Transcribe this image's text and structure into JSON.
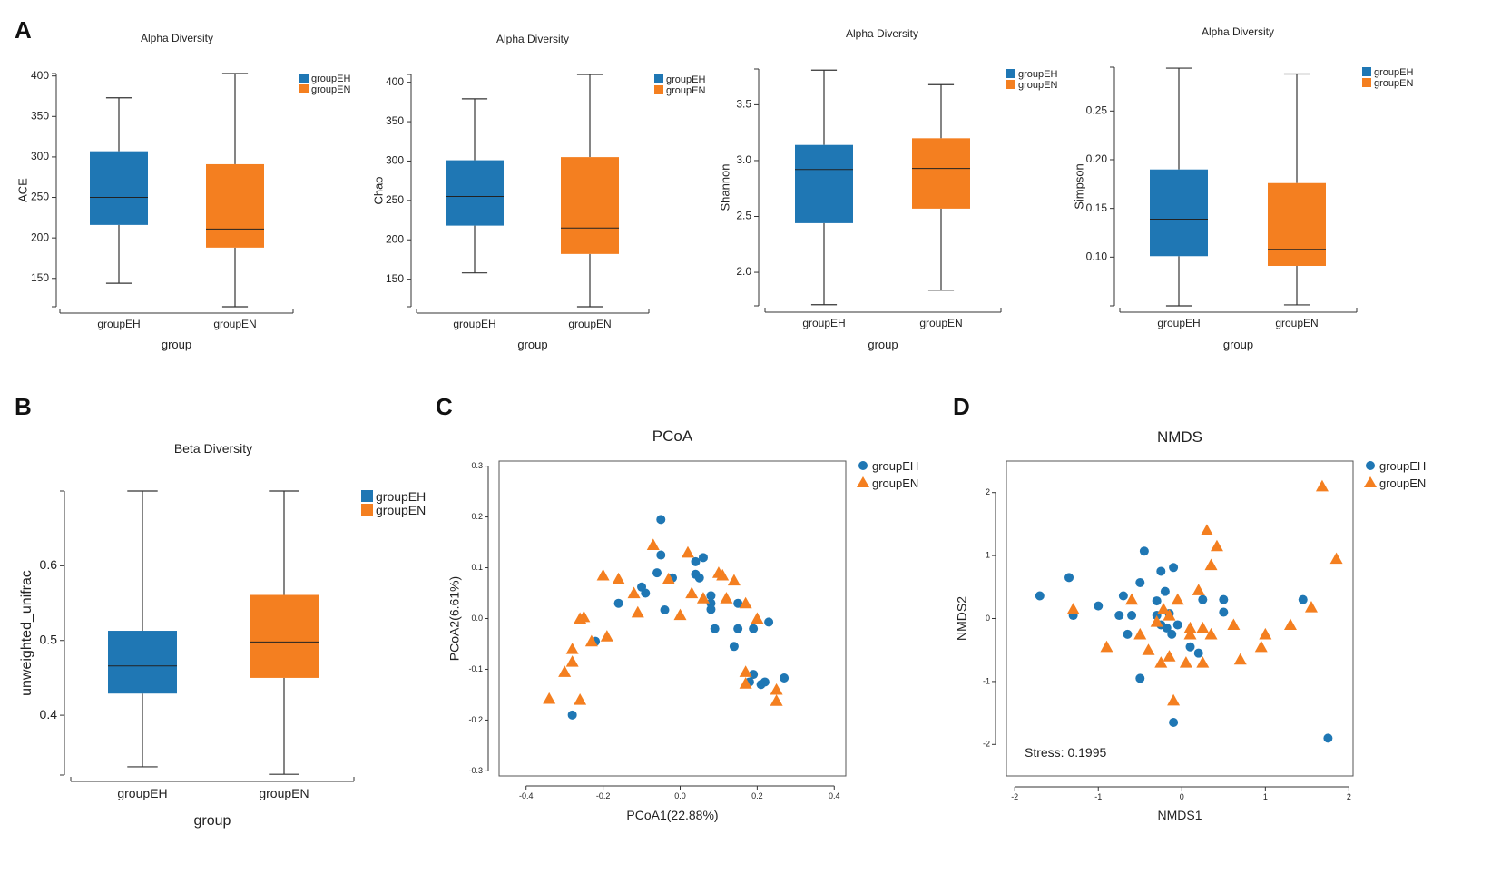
{
  "panel_labels": {
    "a": "A",
    "b": "B",
    "c": "C",
    "d": "D"
  },
  "colors": {
    "groupEH": "#1f77b4",
    "groupEN": "#f47f20",
    "axis": "#333333"
  },
  "chart_data": [
    {
      "id": "ace",
      "type": "box",
      "title": "Alpha Diversity",
      "xlabel": "group",
      "ylabel": "ACE",
      "categories": [
        "groupEH",
        "groupEN"
      ],
      "legend": [
        "groupEH",
        "groupEN"
      ],
      "ylim": [
        115,
        403
      ],
      "yticks": [
        150,
        200,
        250,
        300,
        350,
        400
      ],
      "boxes": [
        {
          "name": "groupEH",
          "min": 144,
          "q1": 216,
          "median": 250,
          "q3": 307,
          "max": 373
        },
        {
          "name": "groupEN",
          "min": 115,
          "q1": 188,
          "median": 211,
          "q3": 291,
          "max": 403
        }
      ]
    },
    {
      "id": "chao",
      "type": "box",
      "title": "Alpha Diversity",
      "xlabel": "group",
      "ylabel": "Chao",
      "categories": [
        "groupEH",
        "groupEN"
      ],
      "legend": [
        "groupEH",
        "groupEN"
      ],
      "ylim": [
        115,
        410
      ],
      "yticks": [
        150,
        200,
        250,
        300,
        350,
        400
      ],
      "boxes": [
        {
          "name": "groupEH",
          "min": 158,
          "q1": 218,
          "median": 255,
          "q3": 301,
          "max": 379
        },
        {
          "name": "groupEN",
          "min": 115,
          "q1": 182,
          "median": 215,
          "q3": 305,
          "max": 410
        }
      ]
    },
    {
      "id": "shannon",
      "type": "box",
      "title": "Alpha Diversity",
      "xlabel": "group",
      "ylabel": "Shannon",
      "categories": [
        "groupEH",
        "groupEN"
      ],
      "legend": [
        "groupEH",
        "groupEN"
      ],
      "ylim": [
        1.7,
        3.82
      ],
      "yticks": [
        2.0,
        2.5,
        3.0,
        3.5
      ],
      "tick_format": "1",
      "boxes": [
        {
          "name": "groupEH",
          "min": 1.71,
          "q1": 2.44,
          "median": 2.92,
          "q3": 3.14,
          "max": 3.81
        },
        {
          "name": "groupEN",
          "min": 1.84,
          "q1": 2.57,
          "median": 2.93,
          "q3": 3.2,
          "max": 3.68
        }
      ]
    },
    {
      "id": "simpson",
      "type": "box",
      "title": "Alpha Diversity",
      "xlabel": "group",
      "ylabel": "Simpson",
      "categories": [
        "groupEH",
        "groupEN"
      ],
      "legend": [
        "groupEH",
        "groupEN"
      ],
      "ylim": [
        0.05,
        0.295
      ],
      "yticks": [
        0.1,
        0.15,
        0.2,
        0.25
      ],
      "tick_format": "2",
      "boxes": [
        {
          "name": "groupEH",
          "min": 0.05,
          "q1": 0.101,
          "median": 0.139,
          "q3": 0.19,
          "max": 0.294
        },
        {
          "name": "groupEN",
          "min": 0.051,
          "q1": 0.091,
          "median": 0.108,
          "q3": 0.176,
          "max": 0.288
        }
      ]
    },
    {
      "id": "beta",
      "type": "box",
      "title": "Beta Diversity",
      "xlabel": "group",
      "ylabel": "unweighted_unifrac",
      "categories": [
        "groupEH",
        "groupEN"
      ],
      "legend": [
        "groupEH",
        "groupEN"
      ],
      "ylim": [
        0.32,
        0.7
      ],
      "yticks": [
        0.4,
        0.5,
        0.6
      ],
      "tick_format": "1",
      "boxes": [
        {
          "name": "groupEH",
          "min": 0.331,
          "q1": 0.429,
          "median": 0.466,
          "q3": 0.513,
          "max": 0.7
        },
        {
          "name": "groupEN",
          "min": 0.321,
          "q1": 0.45,
          "median": 0.498,
          "q3": 0.561,
          "max": 0.7
        }
      ]
    },
    {
      "id": "pcoa",
      "type": "scatter",
      "title": "PCoA",
      "xlabel": "PCoA1(22.88%)",
      "ylabel": "PCoA2(6.61%)",
      "xlim": [
        -0.47,
        0.43
      ],
      "ylim": [
        -0.31,
        0.31
      ],
      "xticks": [
        -0.4,
        -0.2,
        0.0,
        0.2,
        0.4
      ],
      "yticks": [
        -0.3,
        -0.2,
        -0.1,
        0.0,
        0.1,
        0.2,
        0.3
      ],
      "tick_format": "1",
      "legend": [
        "groupEH",
        "groupEN"
      ],
      "series": [
        {
          "name": "groupEH",
          "marker": "circle",
          "points": [
            [
              -0.05,
              0.195
            ],
            [
              -0.05,
              0.125
            ],
            [
              0.04,
              0.112
            ],
            [
              0.06,
              0.12
            ],
            [
              -0.1,
              0.062
            ],
            [
              -0.09,
              0.05
            ],
            [
              -0.06,
              0.09
            ],
            [
              -0.02,
              0.08
            ],
            [
              0.04,
              0.087
            ],
            [
              0.05,
              0.08
            ],
            [
              0.08,
              0.045
            ],
            [
              0.08,
              0.03
            ],
            [
              0.08,
              0.018
            ],
            [
              -0.16,
              0.03
            ],
            [
              -0.04,
              0.017
            ],
            [
              0.09,
              -0.02
            ],
            [
              0.15,
              0.03
            ],
            [
              0.15,
              -0.02
            ],
            [
              0.19,
              -0.02
            ],
            [
              0.23,
              -0.007
            ],
            [
              0.14,
              -0.055
            ],
            [
              0.19,
              -0.11
            ],
            [
              0.18,
              -0.125
            ],
            [
              0.22,
              -0.125
            ],
            [
              0.27,
              -0.117
            ],
            [
              0.21,
              -0.13
            ],
            [
              -0.22,
              -0.045
            ],
            [
              -0.28,
              -0.19
            ]
          ]
        },
        {
          "name": "groupEN",
          "marker": "triangle",
          "points": [
            [
              -0.07,
              0.145
            ],
            [
              0.02,
              0.13
            ],
            [
              -0.2,
              0.085
            ],
            [
              -0.16,
              0.078
            ],
            [
              -0.03,
              0.078
            ],
            [
              -0.12,
              0.05
            ],
            [
              0.1,
              0.09
            ],
            [
              0.11,
              0.085
            ],
            [
              0.14,
              0.075
            ],
            [
              0.03,
              0.05
            ],
            [
              0.06,
              0.04
            ],
            [
              0.12,
              0.04
            ],
            [
              0.17,
              0.03
            ],
            [
              -0.11,
              0.012
            ],
            [
              0.0,
              0.007
            ],
            [
              0.2,
              0.0
            ],
            [
              -0.26,
              0.0
            ],
            [
              -0.25,
              0.003
            ],
            [
              -0.23,
              -0.045
            ],
            [
              -0.19,
              -0.035
            ],
            [
              -0.28,
              -0.06
            ],
            [
              -0.28,
              -0.085
            ],
            [
              -0.3,
              -0.105
            ],
            [
              0.17,
              -0.105
            ],
            [
              0.17,
              -0.128
            ],
            [
              0.25,
              -0.14
            ],
            [
              0.25,
              -0.162
            ],
            [
              -0.26,
              -0.16
            ],
            [
              -0.34,
              -0.158
            ]
          ]
        }
      ]
    },
    {
      "id": "nmds",
      "type": "scatter",
      "title": "NMDS",
      "xlabel": "NMDS1",
      "ylabel": "NMDS2",
      "xlim": [
        -2.1,
        2.05
      ],
      "ylim": [
        -2.5,
        2.5
      ],
      "xticks": [
        -2,
        -1,
        0,
        1,
        2
      ],
      "yticks": [
        -2,
        -1,
        0,
        1,
        2
      ],
      "tick_format": "0",
      "legend": [
        "groupEH",
        "groupEN"
      ],
      "annotation": "Stress: 0.1995",
      "series": [
        {
          "name": "groupEH",
          "marker": "circle",
          "points": [
            [
              -1.7,
              0.36
            ],
            [
              -1.35,
              0.65
            ],
            [
              -1.3,
              0.05
            ],
            [
              -1.0,
              0.2
            ],
            [
              -0.7,
              0.36
            ],
            [
              -0.5,
              0.57
            ],
            [
              -0.45,
              1.07
            ],
            [
              -0.3,
              0.28
            ],
            [
              -0.25,
              0.75
            ],
            [
              -0.2,
              0.43
            ],
            [
              -0.15,
              0.08
            ],
            [
              -0.1,
              0.81
            ],
            [
              -0.75,
              0.05
            ],
            [
              -0.6,
              0.05
            ],
            [
              -0.65,
              -0.25
            ],
            [
              -0.3,
              0.05
            ],
            [
              -0.25,
              -0.1
            ],
            [
              -0.18,
              -0.15
            ],
            [
              -0.12,
              -0.25
            ],
            [
              -0.05,
              -0.1
            ],
            [
              0.1,
              -0.45
            ],
            [
              0.2,
              -0.55
            ],
            [
              0.25,
              0.3
            ],
            [
              0.5,
              0.3
            ],
            [
              0.5,
              0.1
            ],
            [
              1.45,
              0.3
            ],
            [
              -0.5,
              -0.95
            ],
            [
              -0.1,
              -1.65
            ],
            [
              1.75,
              -1.9
            ]
          ]
        },
        {
          "name": "groupEN",
          "marker": "triangle",
          "points": [
            [
              -1.3,
              0.15
            ],
            [
              -0.6,
              0.3
            ],
            [
              -0.9,
              -0.45
            ],
            [
              -0.5,
              -0.25
            ],
            [
              -0.4,
              -0.5
            ],
            [
              -0.3,
              -0.05
            ],
            [
              -0.22,
              0.15
            ],
            [
              -0.15,
              0.05
            ],
            [
              -0.15,
              -0.6
            ],
            [
              -0.25,
              -0.7
            ],
            [
              -0.05,
              0.3
            ],
            [
              0.1,
              -0.25
            ],
            [
              0.1,
              -0.15
            ],
            [
              0.2,
              0.45
            ],
            [
              0.25,
              -0.15
            ],
            [
              0.3,
              1.4
            ],
            [
              0.35,
              0.85
            ],
            [
              0.42,
              1.15
            ],
            [
              0.35,
              -0.25
            ],
            [
              0.62,
              -0.1
            ],
            [
              0.25,
              -0.7
            ],
            [
              0.05,
              -0.7
            ],
            [
              -0.1,
              -1.3
            ],
            [
              0.7,
              -0.65
            ],
            [
              0.95,
              -0.45
            ],
            [
              1.0,
              -0.25
            ],
            [
              1.3,
              -0.1
            ],
            [
              1.55,
              0.18
            ],
            [
              1.68,
              2.1
            ],
            [
              1.85,
              0.95
            ]
          ]
        }
      ]
    }
  ]
}
